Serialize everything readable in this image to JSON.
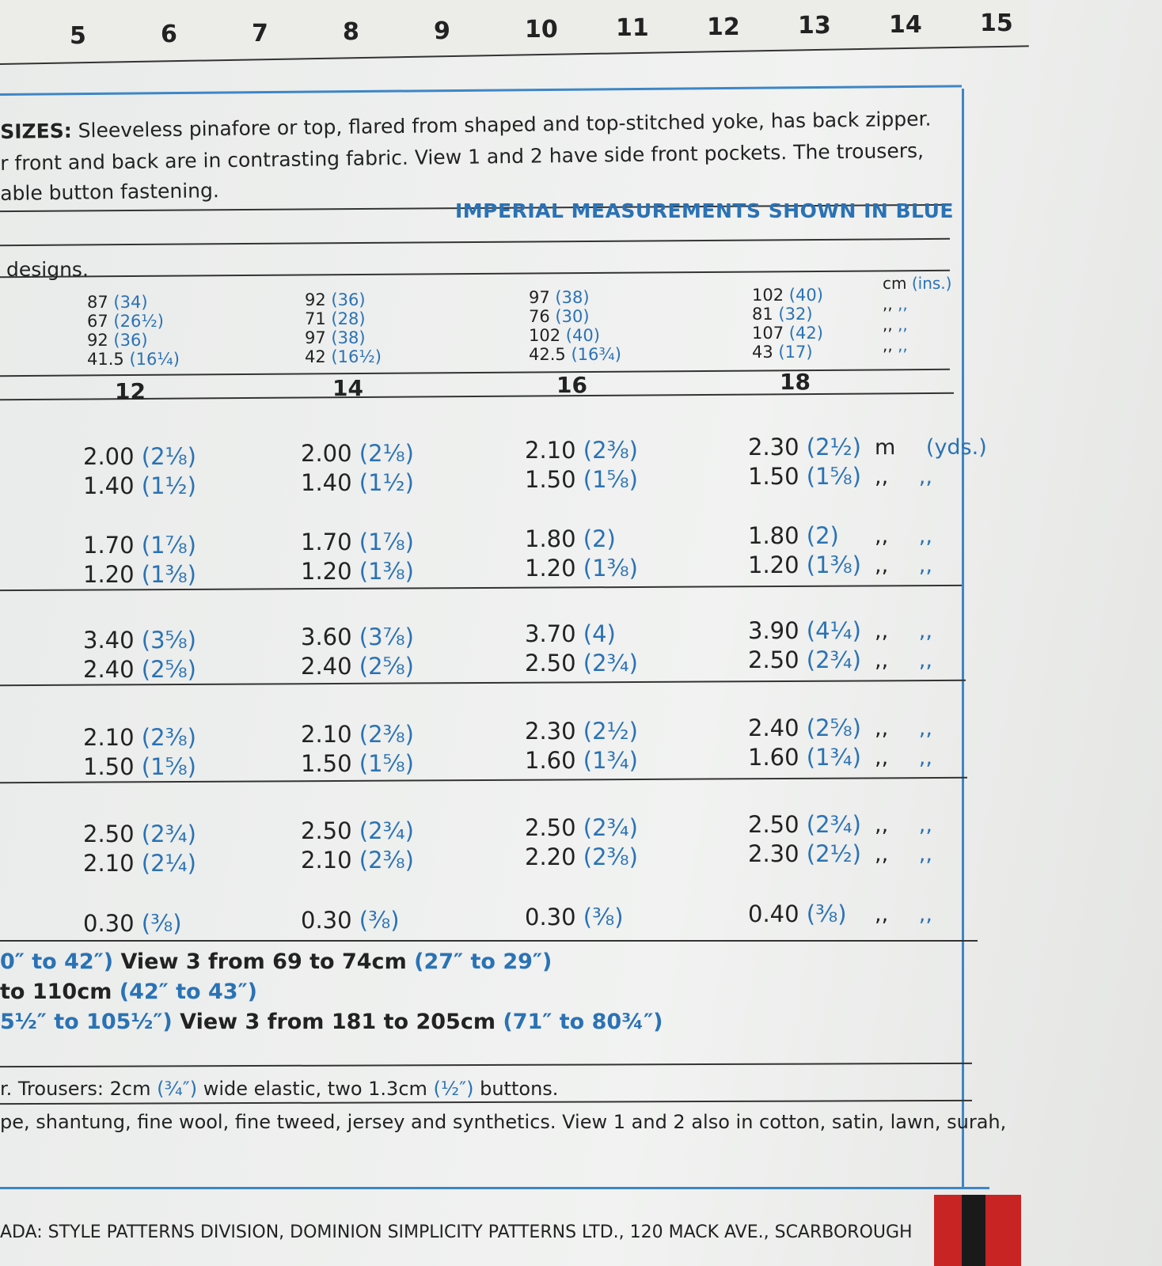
{
  "ruler": [
    "5",
    "6",
    "7",
    "8",
    "9",
    "10",
    "11",
    "12",
    "13",
    "14",
    "15"
  ],
  "description": {
    "label": "SIZES:",
    "lines": [
      " Sleeveless pinafore or top, flared from shaped and top-stitched yoke, has back zipper.",
      "r front and back are in contrasting fabric. View 1 and 2 have side front pockets. The trousers,",
      "able button fastening."
    ]
  },
  "imperial_note": "IMPERIAL MEASUREMENTS SHOWN IN BLUE",
  "designs_label": "designs.",
  "sizes": [
    "12",
    "14",
    "16",
    "18"
  ],
  "body_measurements": [
    [
      [
        "87",
        "(34)"
      ],
      [
        "67",
        "(26½)"
      ],
      [
        "92",
        "(36)"
      ],
      [
        "41.5",
        "(16¼)"
      ]
    ],
    [
      [
        "92",
        "(36)"
      ],
      [
        "71",
        "(28)"
      ],
      [
        "97",
        "(38)"
      ],
      [
        "42",
        "(16½)"
      ]
    ],
    [
      [
        "97",
        "(38)"
      ],
      [
        "76",
        "(30)"
      ],
      [
        "102",
        "(40)"
      ],
      [
        "42.5",
        "(16¾)"
      ]
    ],
    [
      [
        "102",
        "(40)"
      ],
      [
        "81",
        "(32)"
      ],
      [
        "107",
        "(42)"
      ],
      [
        "43",
        "(17)"
      ]
    ]
  ],
  "body_units": [
    [
      "cm",
      "(ins.)"
    ],
    [
      ",,",
      ",,"
    ],
    [
      ",,",
      ",,"
    ],
    [
      ",,",
      ",,"
    ]
  ],
  "yardage": [
    [
      [
        "2.00",
        "(2⅛)"
      ],
      [
        "1.40",
        "(1½)"
      ],
      [
        "1.70",
        "(1⅞)"
      ],
      [
        "1.20",
        "(1⅜)"
      ],
      [
        "3.40",
        "(3⅝)"
      ],
      [
        "2.40",
        "(2⅝)"
      ],
      [
        "2.10",
        "(2⅜)"
      ],
      [
        "1.50",
        "(1⅝)"
      ],
      [
        "2.50",
        "(2¾)"
      ],
      [
        "2.10",
        "(2¼)"
      ],
      [
        "0.30",
        "(⅜)"
      ]
    ],
    [
      [
        "2.00",
        "(2⅛)"
      ],
      [
        "1.40",
        "(1½)"
      ],
      [
        "1.70",
        "(1⅞)"
      ],
      [
        "1.20",
        "(1⅜)"
      ],
      [
        "3.60",
        "(3⅞)"
      ],
      [
        "2.40",
        "(2⅝)"
      ],
      [
        "2.10",
        "(2⅜)"
      ],
      [
        "1.50",
        "(1⅝)"
      ],
      [
        "2.50",
        "(2¾)"
      ],
      [
        "2.10",
        "(2⅜)"
      ],
      [
        "0.30",
        "(⅜)"
      ]
    ],
    [
      [
        "2.10",
        "(2⅜)"
      ],
      [
        "1.50",
        "(1⅝)"
      ],
      [
        "1.80",
        "(2)"
      ],
      [
        "1.20",
        "(1⅜)"
      ],
      [
        "3.70",
        "(4)"
      ],
      [
        "2.50",
        "(2¾)"
      ],
      [
        "2.30",
        "(2½)"
      ],
      [
        "1.60",
        "(1¾)"
      ],
      [
        "2.50",
        "(2¾)"
      ],
      [
        "2.20",
        "(2⅜)"
      ],
      [
        "0.30",
        "(⅜)"
      ]
    ],
    [
      [
        "2.30",
        "(2½)"
      ],
      [
        "1.50",
        "(1⅝)"
      ],
      [
        "1.80",
        "(2)"
      ],
      [
        "1.20",
        "(1⅜)"
      ],
      [
        "3.90",
        "(4¼)"
      ],
      [
        "2.50",
        "(2¾)"
      ],
      [
        "2.40",
        "(2⅝)"
      ],
      [
        "1.60",
        "(1¾)"
      ],
      [
        "2.50",
        "(2¾)"
      ],
      [
        "2.30",
        "(2½)"
      ],
      [
        "0.40",
        "(⅜)"
      ]
    ]
  ],
  "yardage_units": [
    [
      "m",
      "(yds.)"
    ],
    [
      ",,",
      ",,"
    ],
    [
      ",,",
      ",,"
    ],
    [
      ",,",
      ",,"
    ],
    [
      ",,",
      ",,"
    ],
    [
      ",,",
      ",,"
    ],
    [
      ",,",
      ",,"
    ],
    [
      ",,",
      ",,"
    ],
    [
      ",,",
      ",,"
    ],
    [
      ",,",
      ",,"
    ],
    [
      ",,",
      ",,"
    ]
  ],
  "notes": [
    [
      {
        "text": "0″ to 42″)",
        "color": "#2a72b5"
      },
      {
        "text": " View 3 from 69 to 74cm ",
        "color": "#222"
      },
      {
        "text": "(27″ to 29″)",
        "color": "#2a72b5"
      }
    ],
    [
      {
        "text": "to 110cm ",
        "color": "#222"
      },
      {
        "text": "(42″ to 43″)",
        "color": "#2a72b5"
      }
    ],
    [
      {
        "text": "5½″ to 105½″)",
        "color": "#2a72b5"
      },
      {
        "text": " View 3 from 181 to 205cm ",
        "color": "#222"
      },
      {
        "text": "(71″ to 80¾″)",
        "color": "#2a72b5"
      }
    ],
    [
      {
        "text": "r. Trousers: 2cm ",
        "color": "#222"
      },
      {
        "text": "(¾″)",
        "color": "#2a72b5"
      },
      {
        "text": " wide elastic, two 1.3cm ",
        "color": "#222"
      },
      {
        "text": "(½″)",
        "color": "#2a72b5"
      },
      {
        "text": " buttons.",
        "color": "#222"
      }
    ],
    [
      {
        "text": "pe, shantung, fine wool, fine tweed, jersey and synthetics. View 1 and 2 also in cotton, satin, lawn, surah,",
        "color": "#222"
      }
    ]
  ],
  "footer": "ADA: STYLE PATTERNS DIVISION, DOMINION SIMPLICITY PATTERNS LTD., 120 MACK AVE., SCARBOROUGH"
}
